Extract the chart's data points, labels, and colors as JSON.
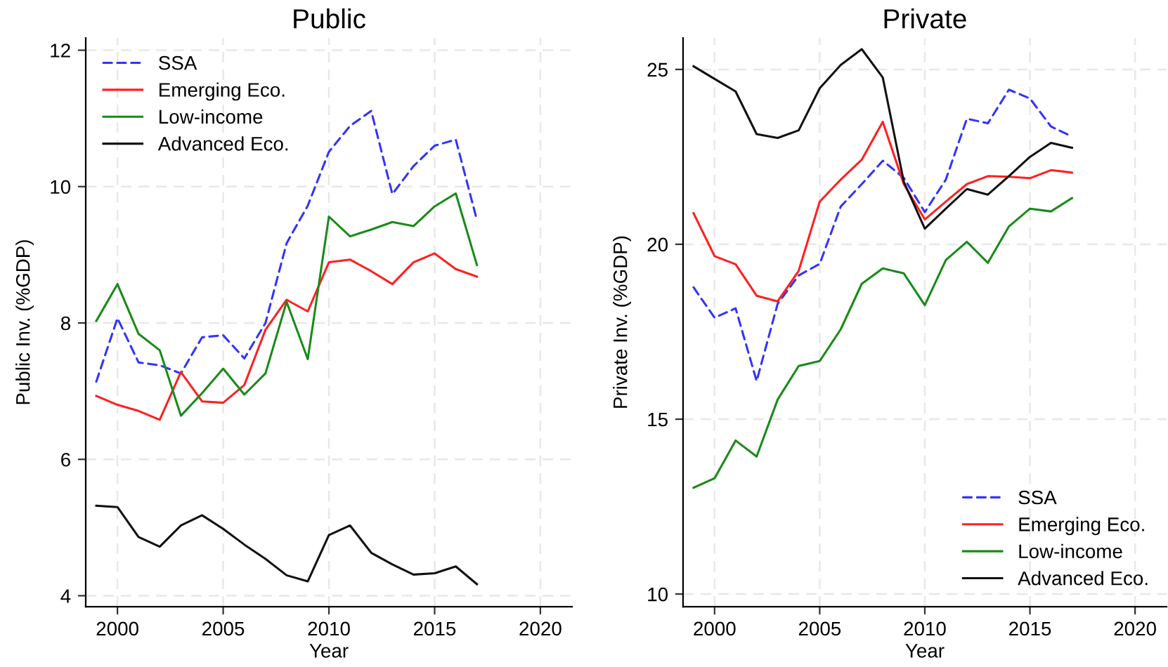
{
  "chart_data": [
    {
      "type": "line",
      "title": "Public",
      "xlabel": "Year",
      "ylabel": "Public Inv. (%GDP)",
      "x": [
        1999,
        2000,
        2001,
        2002,
        2003,
        2004,
        2005,
        2006,
        2007,
        2008,
        2009,
        2010,
        2011,
        2012,
        2013,
        2014,
        2015,
        2016,
        2017
      ],
      "series": [
        {
          "name": "SSA",
          "color": "#3333ff",
          "line_style": "dashed",
          "values": [
            7.14,
            8.07,
            7.42,
            7.38,
            7.26,
            7.79,
            7.82,
            7.48,
            8.0,
            9.17,
            9.72,
            10.51,
            10.89,
            11.11,
            9.89,
            10.3,
            10.6,
            10.69,
            9.51
          ]
        },
        {
          "name": "Emerging Eco.",
          "color": "#ff2020",
          "line_style": "solid",
          "values": [
            6.93,
            6.8,
            6.71,
            6.58,
            7.28,
            6.85,
            6.83,
            7.09,
            7.9,
            8.34,
            8.17,
            8.89,
            8.93,
            8.76,
            8.57,
            8.89,
            9.02,
            8.79,
            8.68
          ]
        },
        {
          "name": "Low-income",
          "color": "#1a8a1a",
          "line_style": "solid",
          "values": [
            8.03,
            8.57,
            7.84,
            7.6,
            6.64,
            6.97,
            7.33,
            6.95,
            7.26,
            8.31,
            7.47,
            9.56,
            9.27,
            9.37,
            9.48,
            9.42,
            9.71,
            9.9,
            8.85
          ]
        },
        {
          "name": "Advanced Eco.",
          "color": "#111111",
          "line_style": "solid",
          "values": [
            5.32,
            5.3,
            4.86,
            4.72,
            5.03,
            5.18,
            4.98,
            4.75,
            4.54,
            4.3,
            4.21,
            4.89,
            5.03,
            4.63,
            4.46,
            4.31,
            4.33,
            4.43,
            4.17
          ]
        }
      ],
      "xlim": [
        1998.5,
        2021.5
      ],
      "ylim": [
        3.84,
        12.18
      ],
      "xticks": [
        2000,
        2005,
        2010,
        2015,
        2020
      ],
      "yticks": [
        4,
        6,
        8,
        10,
        12
      ],
      "grid": true,
      "legend": "top left"
    },
    {
      "type": "line",
      "title": "Private",
      "xlabel": "Year",
      "ylabel": "Private Inv. (%GDP)",
      "x": [
        1999,
        2000,
        2001,
        2002,
        2003,
        2004,
        2005,
        2006,
        2007,
        2008,
        2009,
        2010,
        2011,
        2012,
        2013,
        2014,
        2015,
        2016,
        2017
      ],
      "series": [
        {
          "name": "SSA",
          "color": "#3333ff",
          "line_style": "dashed",
          "values": [
            18.77,
            17.9,
            18.17,
            16.09,
            18.3,
            19.11,
            19.44,
            21.08,
            21.72,
            22.39,
            21.9,
            20.92,
            21.85,
            23.59,
            23.46,
            24.42,
            24.17,
            23.37,
            23.08
          ]
        },
        {
          "name": "Emerging Eco.",
          "color": "#ff2020",
          "line_style": "solid",
          "values": [
            20.89,
            19.66,
            19.43,
            18.53,
            18.37,
            19.24,
            21.22,
            21.85,
            22.42,
            23.5,
            21.72,
            20.71,
            21.22,
            21.72,
            21.95,
            21.93,
            21.89,
            22.12,
            22.05
          ]
        },
        {
          "name": "Low-income",
          "color": "#1a8a1a",
          "line_style": "solid",
          "values": [
            13.04,
            13.31,
            14.39,
            13.93,
            15.56,
            16.52,
            16.66,
            17.57,
            18.87,
            19.31,
            19.17,
            18.26,
            19.55,
            20.07,
            19.47,
            20.51,
            21.02,
            20.94,
            21.32
          ]
        },
        {
          "name": "Advanced Eco.",
          "color": "#111111",
          "line_style": "solid",
          "values": [
            25.09,
            24.73,
            24.37,
            23.15,
            23.04,
            23.26,
            24.46,
            25.13,
            25.58,
            24.77,
            21.79,
            20.45,
            21.02,
            21.58,
            21.42,
            21.95,
            22.5,
            22.9,
            22.76
          ]
        }
      ],
      "xlim": [
        1998.5,
        2021.5
      ],
      "ylim": [
        9.64,
        25.9
      ],
      "xticks": [
        2000,
        2005,
        2010,
        2015,
        2020
      ],
      "yticks": [
        10,
        15,
        20,
        25
      ],
      "grid": true,
      "legend": "bottom right"
    }
  ]
}
